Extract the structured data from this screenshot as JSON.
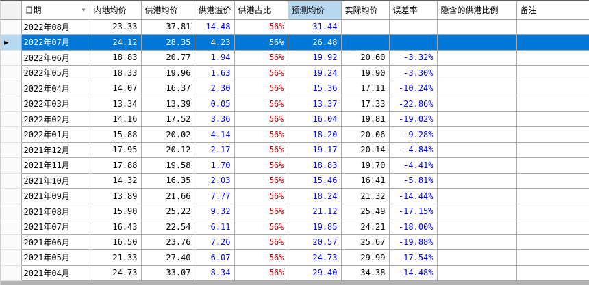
{
  "grid": {
    "columns": [
      {
        "id": "row_header",
        "label": ""
      },
      {
        "id": "date",
        "label": "日期"
      },
      {
        "id": "mainland_avg",
        "label": "内地均价"
      },
      {
        "id": "hk_avg",
        "label": "供港均价"
      },
      {
        "id": "hk_premium",
        "label": "供港溢价"
      },
      {
        "id": "hk_share",
        "label": "供港占比"
      },
      {
        "id": "forecast_avg",
        "label": "预测均价"
      },
      {
        "id": "actual_avg",
        "label": "实际均价"
      },
      {
        "id": "error_rate",
        "label": "误差率"
      },
      {
        "id": "implied_hk_ratio",
        "label": "隐含的供港比例"
      },
      {
        "id": "remark",
        "label": "备注"
      }
    ],
    "rows": [
      {
        "date": "2022年08月",
        "mainland_avg": "23.33",
        "hk_avg": "37.81",
        "hk_premium": "14.48",
        "hk_share": "56%",
        "forecast_avg": "31.44",
        "actual_avg": "",
        "error_rate": "",
        "implied_hk_ratio": "",
        "remark": ""
      },
      {
        "date": "2022年07月",
        "mainland_avg": "24.12",
        "hk_avg": "28.35",
        "hk_premium": "4.23",
        "hk_share": "56%",
        "forecast_avg": "26.48",
        "actual_avg": "",
        "error_rate": "",
        "implied_hk_ratio": "",
        "remark": ""
      },
      {
        "date": "2022年06月",
        "mainland_avg": "18.83",
        "hk_avg": "20.77",
        "hk_premium": "1.94",
        "hk_share": "56%",
        "forecast_avg": "19.92",
        "actual_avg": "20.60",
        "error_rate": "-3.32%",
        "implied_hk_ratio": "",
        "remark": ""
      },
      {
        "date": "2022年05月",
        "mainland_avg": "18.33",
        "hk_avg": "19.96",
        "hk_premium": "1.63",
        "hk_share": "56%",
        "forecast_avg": "19.24",
        "actual_avg": "19.90",
        "error_rate": "-3.30%",
        "implied_hk_ratio": "",
        "remark": ""
      },
      {
        "date": "2022年04月",
        "mainland_avg": "14.07",
        "hk_avg": "16.37",
        "hk_premium": "2.30",
        "hk_share": "56%",
        "forecast_avg": "15.36",
        "actual_avg": "17.11",
        "error_rate": "-10.24%",
        "implied_hk_ratio": "",
        "remark": ""
      },
      {
        "date": "2022年03月",
        "mainland_avg": "13.34",
        "hk_avg": "13.39",
        "hk_premium": "0.05",
        "hk_share": "56%",
        "forecast_avg": "13.37",
        "actual_avg": "17.33",
        "error_rate": "-22.86%",
        "implied_hk_ratio": "",
        "remark": ""
      },
      {
        "date": "2022年02月",
        "mainland_avg": "14.16",
        "hk_avg": "17.52",
        "hk_premium": "3.36",
        "hk_share": "56%",
        "forecast_avg": "16.04",
        "actual_avg": "19.81",
        "error_rate": "-19.02%",
        "implied_hk_ratio": "",
        "remark": ""
      },
      {
        "date": "2022年01月",
        "mainland_avg": "15.88",
        "hk_avg": "20.02",
        "hk_premium": "4.14",
        "hk_share": "56%",
        "forecast_avg": "18.20",
        "actual_avg": "20.06",
        "error_rate": "-9.28%",
        "implied_hk_ratio": "",
        "remark": ""
      },
      {
        "date": "2021年12月",
        "mainland_avg": "17.95",
        "hk_avg": "20.12",
        "hk_premium": "2.17",
        "hk_share": "56%",
        "forecast_avg": "19.17",
        "actual_avg": "20.14",
        "error_rate": "-4.84%",
        "implied_hk_ratio": "",
        "remark": ""
      },
      {
        "date": "2021年11月",
        "mainland_avg": "17.88",
        "hk_avg": "19.58",
        "hk_premium": "1.70",
        "hk_share": "56%",
        "forecast_avg": "18.83",
        "actual_avg": "19.70",
        "error_rate": "-4.41%",
        "implied_hk_ratio": "",
        "remark": ""
      },
      {
        "date": "2021年10月",
        "mainland_avg": "14.32",
        "hk_avg": "16.35",
        "hk_premium": "2.03",
        "hk_share": "56%",
        "forecast_avg": "15.46",
        "actual_avg": "16.41",
        "error_rate": "-5.81%",
        "implied_hk_ratio": "",
        "remark": ""
      },
      {
        "date": "2021年09月",
        "mainland_avg": "13.89",
        "hk_avg": "21.66",
        "hk_premium": "7.77",
        "hk_share": "56%",
        "forecast_avg": "18.24",
        "actual_avg": "21.32",
        "error_rate": "-14.44%",
        "implied_hk_ratio": "",
        "remark": ""
      },
      {
        "date": "2021年08月",
        "mainland_avg": "15.90",
        "hk_avg": "25.22",
        "hk_premium": "9.32",
        "hk_share": "56%",
        "forecast_avg": "21.12",
        "actual_avg": "25.49",
        "error_rate": "-17.15%",
        "implied_hk_ratio": "",
        "remark": ""
      },
      {
        "date": "2021年07月",
        "mainland_avg": "16.43",
        "hk_avg": "22.54",
        "hk_premium": "6.11",
        "hk_share": "56%",
        "forecast_avg": "19.85",
        "actual_avg": "24.21",
        "error_rate": "-18.00%",
        "implied_hk_ratio": "",
        "remark": ""
      },
      {
        "date": "2021年06月",
        "mainland_avg": "16.50",
        "hk_avg": "23.76",
        "hk_premium": "7.26",
        "hk_share": "56%",
        "forecast_avg": "20.57",
        "actual_avg": "25.67",
        "error_rate": "-19.88%",
        "implied_hk_ratio": "",
        "remark": ""
      },
      {
        "date": "2021年05月",
        "mainland_avg": "21.33",
        "hk_avg": "27.40",
        "hk_premium": "6.07",
        "hk_share": "56%",
        "forecast_avg": "24.73",
        "actual_avg": "29.99",
        "error_rate": "-17.54%",
        "implied_hk_ratio": "",
        "remark": ""
      },
      {
        "date": "2021年04月",
        "mainland_avg": "24.73",
        "hk_avg": "33.07",
        "hk_premium": "8.34",
        "hk_share": "56%",
        "forecast_avg": "29.40",
        "actual_avg": "34.38",
        "error_rate": "-14.48%",
        "implied_hk_ratio": "",
        "remark": ""
      }
    ],
    "selected": {
      "row_index": 1,
      "column_id": "forecast_avg"
    },
    "icons": {
      "filter_arrow_glyph": "▼",
      "current_row_glyph": "▶"
    },
    "colors": {
      "selection_blue": "#0078d7",
      "current_highlight_blue": "#b8d8f0",
      "value_blue": "#0000ff",
      "value_red": "#c00000"
    }
  }
}
